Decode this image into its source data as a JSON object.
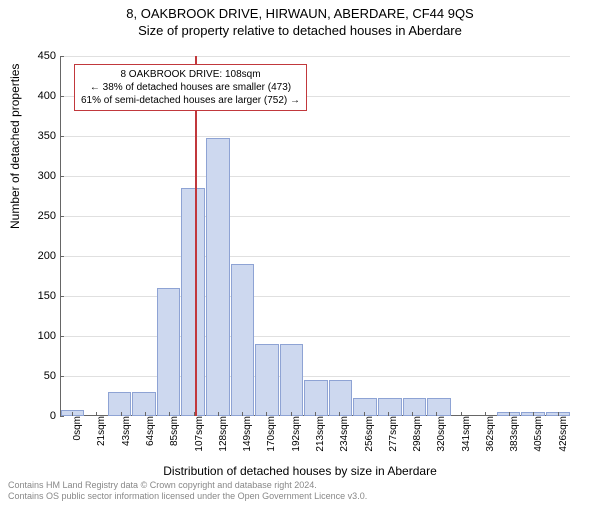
{
  "title_line1": "8, OAKBROOK DRIVE, HIRWAUN, ABERDARE, CF44 9QS",
  "title_line2": "Size of property relative to detached houses in Aberdare",
  "y_axis_label": "Number of detached properties",
  "x_axis_label": "Distribution of detached houses by size in Aberdare",
  "annotation": {
    "line1": "8 OAKBROOK DRIVE: 108sqm",
    "line2": "← 38% of detached houses are smaller (473)",
    "line3": "61% of semi-detached houses are larger (752) →",
    "border_color": "#c1383c"
  },
  "marker": {
    "value_sqm": 108,
    "color": "#c1383c"
  },
  "chart": {
    "type": "histogram",
    "bar_fill": "#cdd8ef",
    "bar_border": "#8ea3d4",
    "grid_color": "#e0e0e0",
    "axis_color": "#666666",
    "background": "#ffffff",
    "ylim": [
      0,
      450
    ],
    "ytick_step": 50,
    "x_categories": [
      "0sqm",
      "21sqm",
      "43sqm",
      "64sqm",
      "85sqm",
      "107sqm",
      "128sqm",
      "149sqm",
      "170sqm",
      "192sqm",
      "213sqm",
      "234sqm",
      "256sqm",
      "277sqm",
      "298sqm",
      "320sqm",
      "341sqm",
      "362sqm",
      "383sqm",
      "405sqm",
      "426sqm"
    ],
    "values": [
      8,
      0,
      30,
      30,
      160,
      285,
      348,
      190,
      90,
      90,
      45,
      45,
      22,
      22,
      22,
      22,
      0,
      0,
      5,
      5,
      5
    ]
  },
  "footer_line1": "Contains HM Land Registry data © Crown copyright and database right 2024.",
  "footer_line2": "Contains OS public sector information licensed under the Open Government Licence v3.0."
}
